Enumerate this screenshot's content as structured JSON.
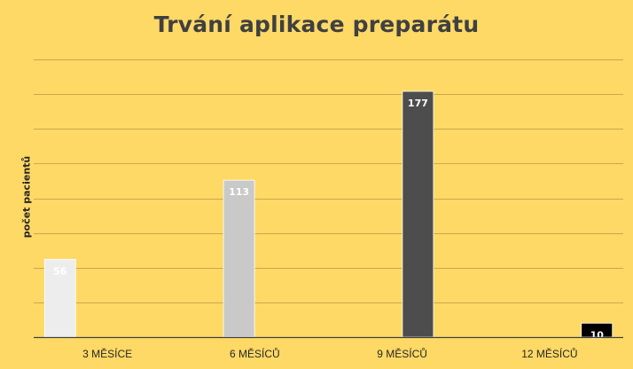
{
  "chart_data": {
    "type": "bar",
    "title": "Trvání aplikace preparátu",
    "ylabel": "počet pacientů",
    "xlabel": "",
    "ylim": [
      0,
      200
    ],
    "grid": true,
    "legend": "none",
    "background_color": "#FFD966",
    "gridline_color": "#C9A94A",
    "axis_color": "#404040",
    "categories": [
      "3 MĚSÍCE",
      "6 MĚSÍCŮ",
      "9 MĚSÍCŮ",
      "12 MĚSÍCŮ"
    ],
    "series": [
      {
        "name": "3 MĚSÍCE",
        "values": [
          56,
          null,
          null,
          null
        ],
        "color": "#EDEDED",
        "label_color": "#FFFFFF"
      },
      {
        "name": "6 MĚSÍCŮ",
        "values": [
          null,
          113,
          null,
          null
        ],
        "color": "#C9C9C9",
        "label_color": "#FFFFFF"
      },
      {
        "name": "9 MĚSÍCŮ",
        "values": [
          null,
          null,
          177,
          null
        ],
        "color": "#4D4D4D",
        "label_color": "#FFFFFF"
      },
      {
        "name": "12 MĚSÍCŮ",
        "values": [
          null,
          null,
          null,
          10
        ],
        "color": "#000000",
        "label_color": "#FFFFFF"
      }
    ]
  }
}
